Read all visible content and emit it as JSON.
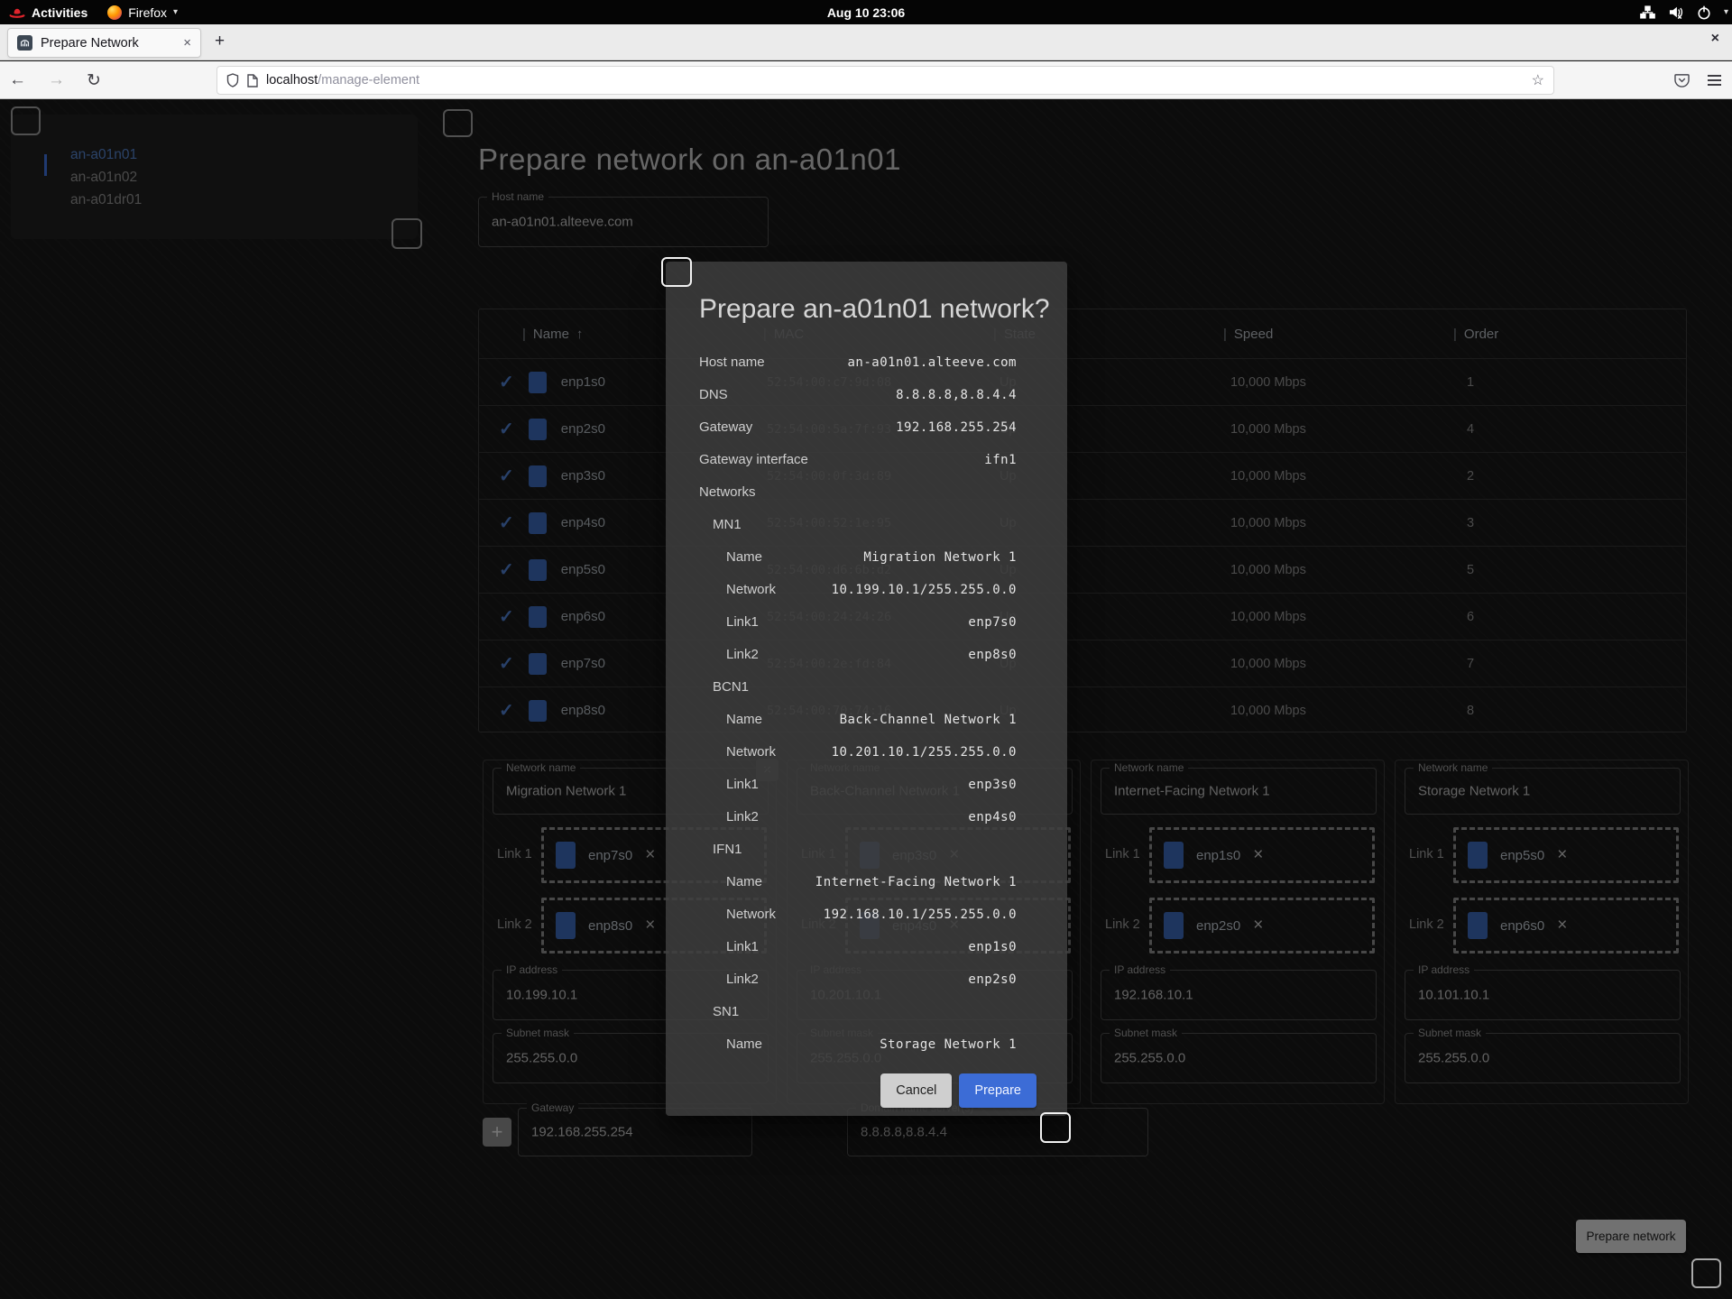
{
  "gnome_bar": {
    "activities": "Activities",
    "firefox": "Firefox",
    "clock": "Aug 10  23:06"
  },
  "browser": {
    "tab_title": "Prepare Network",
    "url_host": "localhost",
    "url_path": "/manage-element"
  },
  "icons": {
    "close": "×",
    "plus": "+",
    "back": "←",
    "forward": "→",
    "reload": "↻",
    "star": "☆",
    "caret": "▾",
    "sort_up": "↑",
    "check": "✓",
    "pipe": "|",
    "add": "+"
  },
  "colors": {
    "accent_blue": "#3c6cd6",
    "chip_blue": "#3a66b5",
    "selected_blue": "#5380c9"
  },
  "sidebar": {
    "items": [
      {
        "label": "an-a01n01",
        "selected": true
      },
      {
        "label": "an-a01n02",
        "selected": false
      },
      {
        "label": "an-a01dr01",
        "selected": false
      }
    ]
  },
  "page": {
    "title": "Prepare network on an-a01n01",
    "host_field": {
      "label": "Host name",
      "value": "an-a01n01.alteeve.com"
    }
  },
  "table": {
    "headers": {
      "name": "Name",
      "mac": "MAC",
      "state": "State",
      "speed": "Speed",
      "order": "Order"
    },
    "rows": [
      {
        "name": "enp1s0",
        "mac": "52:54:00:c7:9d:08",
        "state": "Up",
        "speed": "10,000 Mbps",
        "order": "1"
      },
      {
        "name": "enp2s0",
        "mac": "52:54:00:5a:7f:93",
        "state": "Up",
        "speed": "10,000 Mbps",
        "order": "4"
      },
      {
        "name": "enp3s0",
        "mac": "52:54:00:0f:3d:89",
        "state": "Up",
        "speed": "10,000 Mbps",
        "order": "2"
      },
      {
        "name": "enp4s0",
        "mac": "52:54:00:52:1e:95",
        "state": "Up",
        "speed": "10,000 Mbps",
        "order": "3"
      },
      {
        "name": "enp5s0",
        "mac": "52:54:00:d6:6b:d2",
        "state": "Up",
        "speed": "10,000 Mbps",
        "order": "5"
      },
      {
        "name": "enp6s0",
        "mac": "52:54:00:24:24:26",
        "state": "Up",
        "speed": "10,000 Mbps",
        "order": "6"
      },
      {
        "name": "enp7s0",
        "mac": "52:54:00:2e:fd:84",
        "state": "Up",
        "speed": "10,000 Mbps",
        "order": "7"
      },
      {
        "name": "enp8s0",
        "mac": "52:54:00:70:74:16",
        "state": "Up",
        "speed": "10,000 Mbps",
        "order": "8"
      }
    ]
  },
  "labels": {
    "network_name": "Network name",
    "ip_address": "IP address",
    "subnet_mask": "Subnet mask",
    "gateway": "Gateway",
    "dns": "Domain name server(s)"
  },
  "cards": [
    {
      "name": "Migration Network 1",
      "ip": "10.199.10.1",
      "mask": "255.255.0.0",
      "links": [
        {
          "label": "Link 1",
          "chip": "enp7s0"
        },
        {
          "label": "Link 2",
          "chip": "enp8s0"
        }
      ]
    },
    {
      "name": "Back-Channel Network 1",
      "ip": "10.201.10.1",
      "mask": "255.255.0.0",
      "links": [
        {
          "label": "Link 1",
          "chip": "enp3s0"
        },
        {
          "label": "Link 2",
          "chip": "enp4s0"
        }
      ]
    },
    {
      "name": "Internet-Facing Network 1",
      "ip": "192.168.10.1",
      "mask": "255.255.0.0",
      "links": [
        {
          "label": "Link 1",
          "chip": "enp1s0"
        },
        {
          "label": "Link 2",
          "chip": "enp2s0"
        }
      ]
    },
    {
      "name": "Storage Network 1",
      "ip": "10.101.10.1",
      "mask": "255.255.0.0",
      "links": [
        {
          "label": "Link 1",
          "chip": "enp5s0"
        },
        {
          "label": "Link 2",
          "chip": "enp6s0"
        }
      ]
    }
  ],
  "bottom": {
    "gateway_value": "192.168.255.254",
    "dns_value": "8.8.8.8,8.8.4.4"
  },
  "actions": {
    "prepare_network": "Prepare network"
  },
  "dialog": {
    "title": "Prepare an-a01n01 network?",
    "rows": [
      {
        "label": "Host name",
        "value": "an-a01n01.alteeve.com",
        "indent": 0
      },
      {
        "label": "DNS",
        "value": "8.8.8.8,8.8.4.4",
        "indent": 0
      },
      {
        "label": "Gateway",
        "value": "192.168.255.254",
        "indent": 0
      },
      {
        "label": "Gateway interface",
        "value": "ifn1",
        "indent": 0
      },
      {
        "label": "Networks",
        "value": "",
        "indent": 0
      },
      {
        "label": "MN1",
        "value": "",
        "indent": 1
      },
      {
        "label": "Name",
        "value": "Migration Network 1",
        "indent": 2
      },
      {
        "label": "Network",
        "value": "10.199.10.1/255.255.0.0",
        "indent": 2
      },
      {
        "label": "Link1",
        "value": "enp7s0",
        "indent": 2
      },
      {
        "label": "Link2",
        "value": "enp8s0",
        "indent": 2
      },
      {
        "label": "BCN1",
        "value": "",
        "indent": 1
      },
      {
        "label": "Name",
        "value": "Back-Channel Network 1",
        "indent": 2
      },
      {
        "label": "Network",
        "value": "10.201.10.1/255.255.0.0",
        "indent": 2
      },
      {
        "label": "Link1",
        "value": "enp3s0",
        "indent": 2
      },
      {
        "label": "Link2",
        "value": "enp4s0",
        "indent": 2
      },
      {
        "label": "IFN1",
        "value": "",
        "indent": 1
      },
      {
        "label": "Name",
        "value": "Internet-Facing Network 1",
        "indent": 2
      },
      {
        "label": "Network",
        "value": "192.168.10.1/255.255.0.0",
        "indent": 2
      },
      {
        "label": "Link1",
        "value": "enp1s0",
        "indent": 2
      },
      {
        "label": "Link2",
        "value": "enp2s0",
        "indent": 2
      },
      {
        "label": "SN1",
        "value": "",
        "indent": 1
      },
      {
        "label": "Name",
        "value": "Storage Network 1",
        "indent": 2
      }
    ],
    "cancel": "Cancel",
    "prepare": "Prepare"
  }
}
